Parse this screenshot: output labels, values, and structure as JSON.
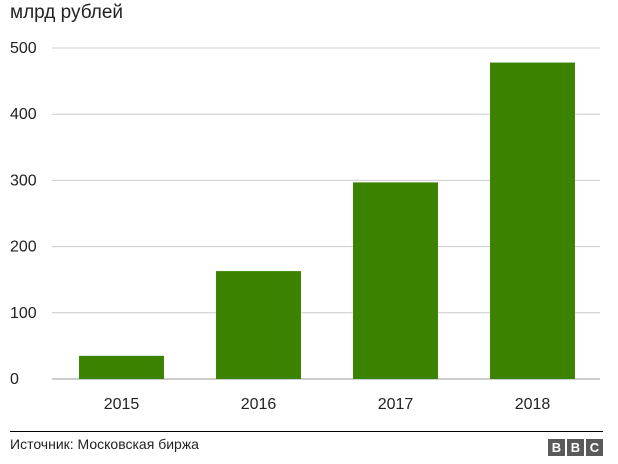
{
  "chart_data": {
    "type": "bar",
    "title": "",
    "ylabel": "млрд рублей",
    "xlabel": "",
    "categories": [
      "2015",
      "2016",
      "2017",
      "2018"
    ],
    "values": [
      35,
      163,
      297,
      478
    ],
    "ylim": [
      0,
      500
    ],
    "yticks": [
      0,
      100,
      200,
      300,
      400,
      500
    ],
    "grid": true,
    "colors": {
      "bar": "#3a8200",
      "grid": "#cccccc",
      "axis": "#999999"
    }
  },
  "footer": {
    "source": "Источник: Московская биржа",
    "logo_letters": [
      "B",
      "B",
      "C"
    ]
  }
}
